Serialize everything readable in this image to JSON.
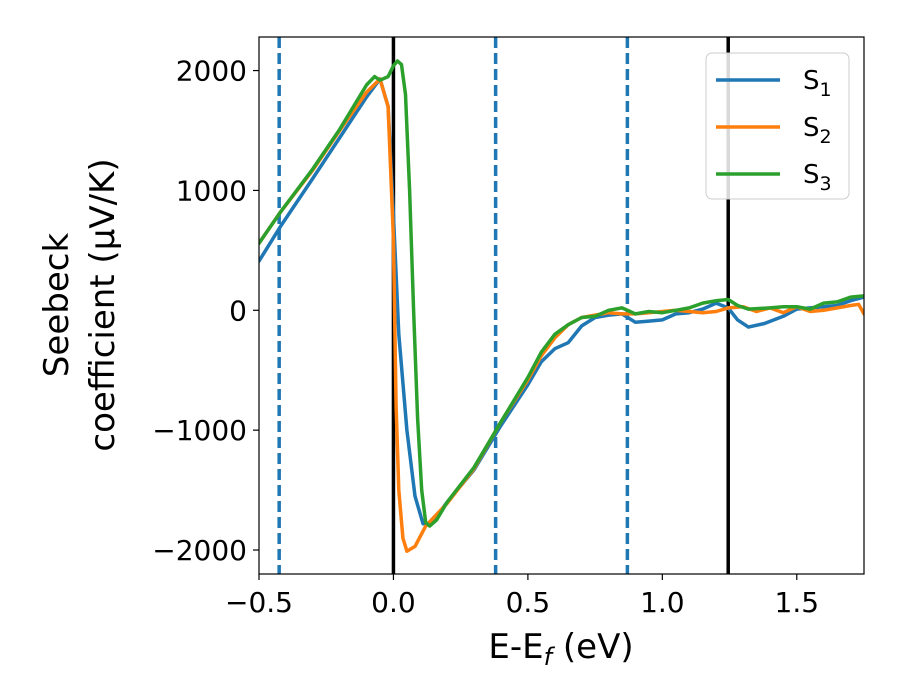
{
  "chart_data": {
    "type": "line",
    "xlabel": "E-E",
    "xlabel_sub": "f",
    "xlabel_suffix": " (eV)",
    "ylabel_line1": "Seebeck",
    "ylabel_line2": "coefficient  (μV/K)",
    "xlim": [
      -0.5,
      1.75
    ],
    "ylim": [
      -2200,
      2280
    ],
    "xticks": [
      -0.5,
      0.0,
      0.5,
      1.0,
      1.5
    ],
    "xtick_labels": [
      "−0.5",
      "0.0",
      "0.5",
      "1.0",
      "1.5"
    ],
    "yticks": [
      2000,
      1000,
      0,
      -1000,
      -2000
    ],
    "ytick_labels": [
      "2000",
      "1000",
      "0",
      "−1000",
      "−2000"
    ],
    "grid": false,
    "legend_position": "top-right",
    "vlines_solid": [
      0.0,
      1.245
    ],
    "vlines_dashed": [
      -0.425,
      0.38,
      0.87
    ],
    "series": [
      {
        "name": "S",
        "sub": "1",
        "color": "#1f77b4",
        "points": [
          [
            -0.5,
            410
          ],
          [
            -0.42,
            700
          ],
          [
            -0.3,
            1100
          ],
          [
            -0.2,
            1440
          ],
          [
            -0.1,
            1780
          ],
          [
            -0.05,
            1930
          ],
          [
            -0.02,
            1700
          ],
          [
            0.0,
            800
          ],
          [
            0.02,
            -200
          ],
          [
            0.05,
            -1000
          ],
          [
            0.08,
            -1550
          ],
          [
            0.11,
            -1780
          ],
          [
            0.14,
            -1780
          ],
          [
            0.2,
            -1600
          ],
          [
            0.3,
            -1330
          ],
          [
            0.4,
            -960
          ],
          [
            0.5,
            -620
          ],
          [
            0.55,
            -430
          ],
          [
            0.6,
            -320
          ],
          [
            0.65,
            -270
          ],
          [
            0.7,
            -130
          ],
          [
            0.75,
            -60
          ],
          [
            0.8,
            -40
          ],
          [
            0.85,
            -30
          ],
          [
            0.9,
            -100
          ],
          [
            0.95,
            -90
          ],
          [
            1.0,
            -80
          ],
          [
            1.05,
            -30
          ],
          [
            1.1,
            -20
          ],
          [
            1.15,
            10
          ],
          [
            1.2,
            60
          ],
          [
            1.245,
            20
          ],
          [
            1.28,
            -80
          ],
          [
            1.32,
            -140
          ],
          [
            1.38,
            -110
          ],
          [
            1.45,
            -50
          ],
          [
            1.5,
            10
          ],
          [
            1.55,
            20
          ],
          [
            1.6,
            30
          ],
          [
            1.65,
            40
          ],
          [
            1.7,
            80
          ],
          [
            1.75,
            110
          ]
        ]
      },
      {
        "name": "S",
        "sub": "2",
        "color": "#ff7f0e",
        "points": [
          [
            -0.5,
            560
          ],
          [
            -0.42,
            820
          ],
          [
            -0.3,
            1170
          ],
          [
            -0.2,
            1500
          ],
          [
            -0.1,
            1820
          ],
          [
            -0.05,
            1930
          ],
          [
            -0.02,
            1700
          ],
          [
            0.0,
            600
          ],
          [
            0.01,
            -800
          ],
          [
            0.02,
            -1500
          ],
          [
            0.035,
            -1900
          ],
          [
            0.05,
            -2010
          ],
          [
            0.08,
            -1970
          ],
          [
            0.12,
            -1800
          ],
          [
            0.2,
            -1610
          ],
          [
            0.3,
            -1320
          ],
          [
            0.4,
            -930
          ],
          [
            0.5,
            -580
          ],
          [
            0.55,
            -380
          ],
          [
            0.6,
            -230
          ],
          [
            0.65,
            -120
          ],
          [
            0.7,
            -60
          ],
          [
            0.75,
            -40
          ],
          [
            0.8,
            -20
          ],
          [
            0.85,
            -30
          ],
          [
            0.9,
            -30
          ],
          [
            0.95,
            -20
          ],
          [
            1.0,
            -10
          ],
          [
            1.05,
            0
          ],
          [
            1.1,
            -10
          ],
          [
            1.15,
            -20
          ],
          [
            1.2,
            -10
          ],
          [
            1.245,
            20
          ],
          [
            1.3,
            30
          ],
          [
            1.35,
            -10
          ],
          [
            1.4,
            20
          ],
          [
            1.45,
            -20
          ],
          [
            1.5,
            30
          ],
          [
            1.55,
            -10
          ],
          [
            1.6,
            0
          ],
          [
            1.65,
            20
          ],
          [
            1.7,
            40
          ],
          [
            1.73,
            50
          ],
          [
            1.75,
            -30
          ]
        ]
      },
      {
        "name": "S",
        "sub": "3",
        "color": "#2ca02c",
        "points": [
          [
            -0.5,
            560
          ],
          [
            -0.42,
            820
          ],
          [
            -0.3,
            1180
          ],
          [
            -0.2,
            1510
          ],
          [
            -0.1,
            1880
          ],
          [
            -0.07,
            1950
          ],
          [
            -0.05,
            1920
          ],
          [
            -0.02,
            1950
          ],
          [
            0.0,
            2040
          ],
          [
            0.015,
            2080
          ],
          [
            0.03,
            2050
          ],
          [
            0.045,
            1800
          ],
          [
            0.06,
            1000
          ],
          [
            0.075,
            0
          ],
          [
            0.09,
            -900
          ],
          [
            0.105,
            -1500
          ],
          [
            0.12,
            -1770
          ],
          [
            0.135,
            -1800
          ],
          [
            0.16,
            -1750
          ],
          [
            0.2,
            -1600
          ],
          [
            0.3,
            -1310
          ],
          [
            0.4,
            -930
          ],
          [
            0.5,
            -560
          ],
          [
            0.55,
            -350
          ],
          [
            0.6,
            -200
          ],
          [
            0.65,
            -120
          ],
          [
            0.7,
            -60
          ],
          [
            0.75,
            -50
          ],
          [
            0.8,
            0
          ],
          [
            0.85,
            20
          ],
          [
            0.9,
            -30
          ],
          [
            0.95,
            -10
          ],
          [
            1.0,
            -20
          ],
          [
            1.05,
            0
          ],
          [
            1.1,
            20
          ],
          [
            1.15,
            60
          ],
          [
            1.2,
            80
          ],
          [
            1.245,
            90
          ],
          [
            1.28,
            40
          ],
          [
            1.32,
            10
          ],
          [
            1.4,
            20
          ],
          [
            1.45,
            30
          ],
          [
            1.5,
            30
          ],
          [
            1.55,
            10
          ],
          [
            1.6,
            60
          ],
          [
            1.65,
            70
          ],
          [
            1.7,
            110
          ],
          [
            1.75,
            120
          ]
        ]
      }
    ]
  }
}
